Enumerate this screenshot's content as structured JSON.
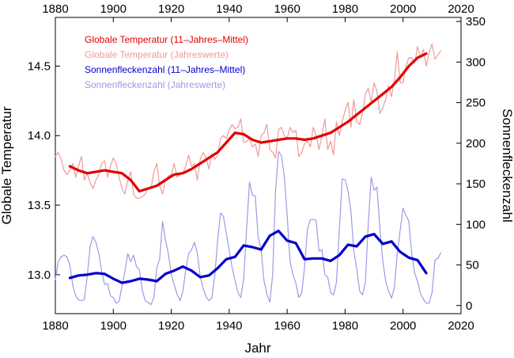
{
  "chart_data": {
    "type": "line",
    "xlabel": "Jahr",
    "ylabel_left": "Globale Temperatur",
    "ylabel_right": "Sonnenfleckenzahl",
    "xlim": [
      1880,
      2020
    ],
    "ylim_left": [
      12.72,
      14.85
    ],
    "ylim_right": [
      -10,
      355
    ],
    "x_ticks": [
      "1880",
      "1900",
      "1920",
      "1940",
      "1960",
      "1980",
      "2000",
      "2020"
    ],
    "y_ticks_left": [
      "13.0",
      "13.5",
      "14.0",
      "14.5"
    ],
    "y_ticks_right": [
      "0",
      "50",
      "100",
      "150",
      "200",
      "250",
      "300",
      "350"
    ],
    "legend": [
      {
        "label": "Globale Temperatur  (11–Jahres–Mittel)",
        "color": "#e00000",
        "series": "temp_mean"
      },
      {
        "label": "Globale Temperatur  (Jahreswerte)",
        "color": "#f09a9a",
        "series": "temp_annual"
      },
      {
        "label": "Sonnenfleckenzahl  (11–Jahres–Mittel)",
        "color": "#0000cc",
        "series": "sun_mean"
      },
      {
        "label": "Sonnenfleckenzahl  (Jahreswerte)",
        "color": "#9c9ae6",
        "series": "sun_annual"
      }
    ],
    "series": [
      {
        "name": "Globale Temperatur (Jahreswerte)",
        "key": "temp_annual",
        "axis": "left",
        "color": "#f09a9a",
        "x": [
          1880,
          1881,
          1882,
          1883,
          1884,
          1885,
          1886,
          1887,
          1888,
          1889,
          1890,
          1891,
          1892,
          1893,
          1894,
          1895,
          1896,
          1897,
          1898,
          1899,
          1900,
          1901,
          1902,
          1903,
          1904,
          1905,
          1906,
          1907,
          1908,
          1909,
          1910,
          1911,
          1912,
          1913,
          1914,
          1915,
          1916,
          1917,
          1918,
          1919,
          1920,
          1921,
          1922,
          1923,
          1924,
          1925,
          1926,
          1927,
          1928,
          1929,
          1930,
          1931,
          1932,
          1933,
          1934,
          1935,
          1936,
          1937,
          1938,
          1939,
          1940,
          1941,
          1942,
          1943,
          1944,
          1945,
          1946,
          1947,
          1948,
          1949,
          1950,
          1951,
          1952,
          1953,
          1954,
          1955,
          1956,
          1957,
          1958,
          1959,
          1960,
          1961,
          1962,
          1963,
          1964,
          1965,
          1966,
          1967,
          1968,
          1969,
          1970,
          1971,
          1972,
          1973,
          1974,
          1975,
          1976,
          1977,
          1978,
          1979,
          1980,
          1981,
          1982,
          1983,
          1984,
          1985,
          1986,
          1987,
          1988,
          1989,
          1990,
          1991,
          1992,
          1993,
          1994,
          1995,
          1996,
          1997,
          1998,
          1999,
          2000,
          2001,
          2002,
          2003,
          2004,
          2005,
          2006,
          2007,
          2008,
          2009,
          2010,
          2011,
          2012,
          2013
        ],
        "values": [
          13.85,
          13.88,
          13.83,
          13.75,
          13.72,
          13.75,
          13.8,
          13.7,
          13.78,
          13.85,
          13.68,
          13.73,
          13.66,
          13.62,
          13.68,
          13.72,
          13.8,
          13.82,
          13.7,
          13.78,
          13.84,
          13.8,
          13.7,
          13.62,
          13.58,
          13.68,
          13.74,
          13.58,
          13.55,
          13.55,
          13.56,
          13.58,
          13.62,
          13.62,
          13.74,
          13.8,
          13.64,
          13.58,
          13.68,
          13.71,
          13.72,
          13.8,
          13.7,
          13.72,
          13.73,
          13.78,
          13.86,
          13.78,
          13.8,
          13.68,
          13.83,
          13.88,
          13.84,
          13.76,
          13.87,
          13.83,
          13.86,
          13.98,
          14.0,
          13.98,
          14.04,
          14.08,
          14.05,
          14.06,
          14.12,
          13.95,
          13.96,
          13.98,
          13.92,
          13.94,
          13.85,
          14.0,
          14.02,
          14.08,
          13.9,
          13.88,
          13.84,
          14.04,
          14.06,
          14.0,
          13.98,
          14.06,
          14.02,
          14.04,
          13.85,
          13.88,
          13.94,
          13.96,
          13.92,
          14.06,
          14.0,
          13.9,
          14.0,
          14.12,
          13.9,
          13.96,
          13.86,
          14.1,
          14.0,
          14.1,
          14.18,
          14.24,
          14.06,
          14.26,
          14.1,
          14.08,
          14.16,
          14.3,
          14.34,
          14.24,
          14.38,
          14.32,
          14.16,
          14.2,
          14.26,
          14.36,
          14.28,
          14.4,
          14.6,
          14.38,
          14.38,
          14.5,
          14.56,
          14.56,
          14.52,
          14.64,
          14.56,
          14.62,
          14.5,
          14.6,
          14.66,
          14.55,
          14.58,
          14.61
        ]
      },
      {
        "name": "Globale Temperatur (11-Jahres-Mittel)",
        "key": "temp_mean",
        "axis": "left",
        "color": "#e00000",
        "x": [
          1885,
          1888,
          1891,
          1894,
          1897,
          1900,
          1903,
          1906,
          1909,
          1912,
          1915,
          1918,
          1921,
          1924,
          1927,
          1930,
          1933,
          1936,
          1939,
          1942,
          1945,
          1948,
          1951,
          1954,
          1957,
          1960,
          1963,
          1966,
          1969,
          1972,
          1975,
          1978,
          1981,
          1984,
          1987,
          1990,
          1993,
          1996,
          1999,
          2002,
          2005,
          2008
        ],
        "values": [
          13.78,
          13.75,
          13.73,
          13.74,
          13.75,
          13.74,
          13.73,
          13.68,
          13.6,
          13.62,
          13.64,
          13.68,
          13.72,
          13.73,
          13.76,
          13.8,
          13.84,
          13.88,
          13.95,
          14.02,
          14.01,
          13.97,
          13.95,
          13.96,
          13.97,
          13.98,
          13.98,
          13.97,
          13.98,
          14.0,
          14.02,
          14.06,
          14.1,
          14.15,
          14.2,
          14.25,
          14.3,
          14.35,
          14.42,
          14.5,
          14.56,
          14.59
        ]
      },
      {
        "name": "Sonnenfleckenzahl (Jahreswerte)",
        "key": "sun_annual",
        "axis": "right",
        "color": "#9c9ae6",
        "x": [
          1880,
          1881,
          1882,
          1883,
          1884,
          1885,
          1886,
          1887,
          1888,
          1889,
          1890,
          1891,
          1892,
          1893,
          1894,
          1895,
          1896,
          1897,
          1898,
          1899,
          1900,
          1901,
          1902,
          1903,
          1904,
          1905,
          1906,
          1907,
          1908,
          1909,
          1910,
          1911,
          1912,
          1913,
          1914,
          1915,
          1916,
          1917,
          1918,
          1919,
          1920,
          1921,
          1922,
          1923,
          1924,
          1925,
          1926,
          1927,
          1928,
          1929,
          1930,
          1931,
          1932,
          1933,
          1934,
          1935,
          1936,
          1937,
          1938,
          1939,
          1940,
          1941,
          1942,
          1943,
          1944,
          1945,
          1946,
          1947,
          1948,
          1949,
          1950,
          1951,
          1952,
          1953,
          1954,
          1955,
          1956,
          1957,
          1958,
          1959,
          1960,
          1961,
          1962,
          1963,
          1964,
          1965,
          1966,
          1967,
          1968,
          1969,
          1970,
          1971,
          1972,
          1973,
          1974,
          1975,
          1976,
          1977,
          1978,
          1979,
          1980,
          1981,
          1982,
          1983,
          1984,
          1985,
          1986,
          1987,
          1988,
          1989,
          1990,
          1991,
          1992,
          1993,
          1994,
          1995,
          1996,
          1997,
          1998,
          1999,
          2000,
          2001,
          2002,
          2003,
          2004,
          2005,
          2006,
          2007,
          2008,
          2009,
          2010,
          2011,
          2012,
          2013
        ],
        "values": [
          32,
          54,
          60,
          62,
          60,
          50,
          25,
          12,
          7,
          6,
          7,
          36,
          73,
          85,
          78,
          64,
          42,
          26,
          27,
          12,
          10,
          3,
          5,
          24,
          42,
          64,
          54,
          62,
          48,
          44,
          19,
          6,
          4,
          1,
          10,
          47,
          57,
          104,
          81,
          64,
          38,
          26,
          14,
          6,
          17,
          44,
          64,
          69,
          78,
          65,
          36,
          21,
          11,
          6,
          9,
          36,
          80,
          114,
          110,
          89,
          68,
          47,
          31,
          16,
          10,
          33,
          93,
          152,
          136,
          135,
          84,
          69,
          31,
          14,
          4,
          38,
          142,
          190,
          185,
          159,
          112,
          54,
          38,
          28,
          10,
          15,
          47,
          94,
          106,
          106,
          105,
          67,
          69,
          38,
          35,
          16,
          13,
          28,
          93,
          156,
          155,
          141,
          116,
          67,
          46,
          18,
          13,
          29,
          100,
          158,
          142,
          146,
          95,
          55,
          30,
          18,
          9,
          22,
          64,
          93,
          120,
          111,
          104,
          64,
          40,
          30,
          15,
          8,
          3,
          3,
          16,
          56,
          58,
          65
        ]
      },
      {
        "name": "Sonnenfleckenzahl (11-Jahres-Mittel)",
        "key": "sun_mean",
        "axis": "right",
        "color": "#0000cc",
        "x": [
          1885,
          1888,
          1891,
          1894,
          1897,
          1900,
          1903,
          1906,
          1909,
          1912,
          1915,
          1918,
          1921,
          1924,
          1927,
          1930,
          1933,
          1936,
          1939,
          1942,
          1945,
          1948,
          1951,
          1954,
          1957,
          1960,
          1963,
          1966,
          1969,
          1972,
          1975,
          1978,
          1981,
          1984,
          1987,
          1990,
          1993,
          1996,
          1999,
          2002,
          2005,
          2008
        ],
        "values": [
          34,
          37,
          38,
          40,
          39,
          33,
          28,
          30,
          33,
          32,
          30,
          39,
          43,
          48,
          43,
          35,
          37,
          46,
          57,
          60,
          74,
          72,
          69,
          86,
          92,
          80,
          77,
          57,
          58,
          58,
          55,
          62,
          75,
          73,
          85,
          88,
          76,
          79,
          66,
          59,
          56,
          40
        ]
      }
    ]
  }
}
